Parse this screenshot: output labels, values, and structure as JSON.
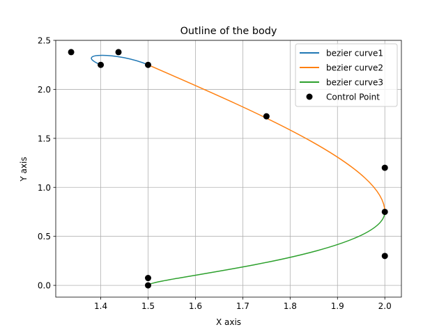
{
  "chart_data": {
    "type": "line",
    "title": "Outline of the body",
    "xlabel": "X axis",
    "ylabel": "Y axis",
    "xlim": [
      1.305,
      2.035
    ],
    "ylim": [
      -0.12,
      2.5
    ],
    "xticks": [
      "1.4",
      "1.5",
      "1.6",
      "1.7",
      "1.8",
      "1.9",
      "2.0"
    ],
    "yticks": [
      "0.0",
      "0.5",
      "1.0",
      "1.5",
      "2.0",
      "2.5"
    ],
    "grid": true,
    "legend_position": "top-right",
    "series": [
      {
        "name": "bezier curve1",
        "kind": "cubic-bezier",
        "color": "#1f77b4",
        "control_points": [
          [
            1.5,
            2.25
          ],
          [
            1.4375,
            2.38
          ],
          [
            1.3375,
            2.38
          ],
          [
            1.4,
            2.25
          ]
        ]
      },
      {
        "name": "bezier curve2",
        "kind": "cubic-bezier",
        "color": "#ff7f0e",
        "control_points": [
          [
            1.5,
            2.25
          ],
          [
            1.75,
            1.725
          ],
          [
            2.0,
            1.2
          ],
          [
            2.0,
            0.75
          ]
        ]
      },
      {
        "name": "bezier curve3",
        "kind": "cubic-bezier",
        "color": "#2ca02c",
        "control_points": [
          [
            2.0,
            0.75
          ],
          [
            2.0,
            0.3
          ],
          [
            1.5,
            0.075
          ],
          [
            1.5,
            0.0
          ]
        ]
      },
      {
        "name": "Control Point",
        "kind": "scatter",
        "color": "#000000",
        "points": [
          [
            1.3375,
            2.38
          ],
          [
            1.4375,
            2.38
          ],
          [
            1.4,
            2.25
          ],
          [
            1.5,
            2.25
          ],
          [
            1.75,
            1.725
          ],
          [
            2.0,
            1.2
          ],
          [
            2.0,
            0.75
          ],
          [
            2.0,
            0.3
          ],
          [
            1.5,
            0.075
          ],
          [
            1.5,
            0.0
          ]
        ]
      }
    ]
  }
}
